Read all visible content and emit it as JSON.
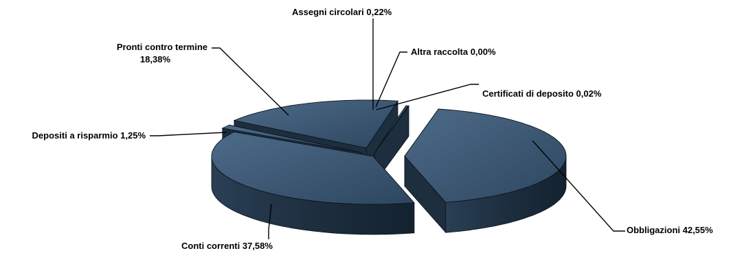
{
  "chart_data": {
    "type": "pie",
    "style": "3d-exploded",
    "colors": {
      "top": "#3f5a74",
      "side": "#1d2e3e",
      "edge": "#0c141d"
    },
    "slices": [
      {
        "name": "Obbligazioni",
        "value": 42.55,
        "label": "Obbligazioni 42,55%"
      },
      {
        "name": "Conti correnti",
        "value": 37.58,
        "label": "Conti correnti 37,58%"
      },
      {
        "name": "Depositi a risparmio",
        "value": 1.25,
        "label": "Depositi a risparmio 1,25%"
      },
      {
        "name": "Pronti contro termine",
        "value": 18.38,
        "label_lines": [
          "Pronti contro termine",
          "18,38%"
        ]
      },
      {
        "name": "Assegni circolari",
        "value": 0.22,
        "label": "Assegni circolari 0,22%"
      },
      {
        "name": "Altra raccolta",
        "value": 0.0,
        "label": "Altra raccolta 0,00%"
      },
      {
        "name": "Certificati di deposito",
        "value": 0.02,
        "label": "Certificati di deposito 0,02%"
      }
    ]
  }
}
